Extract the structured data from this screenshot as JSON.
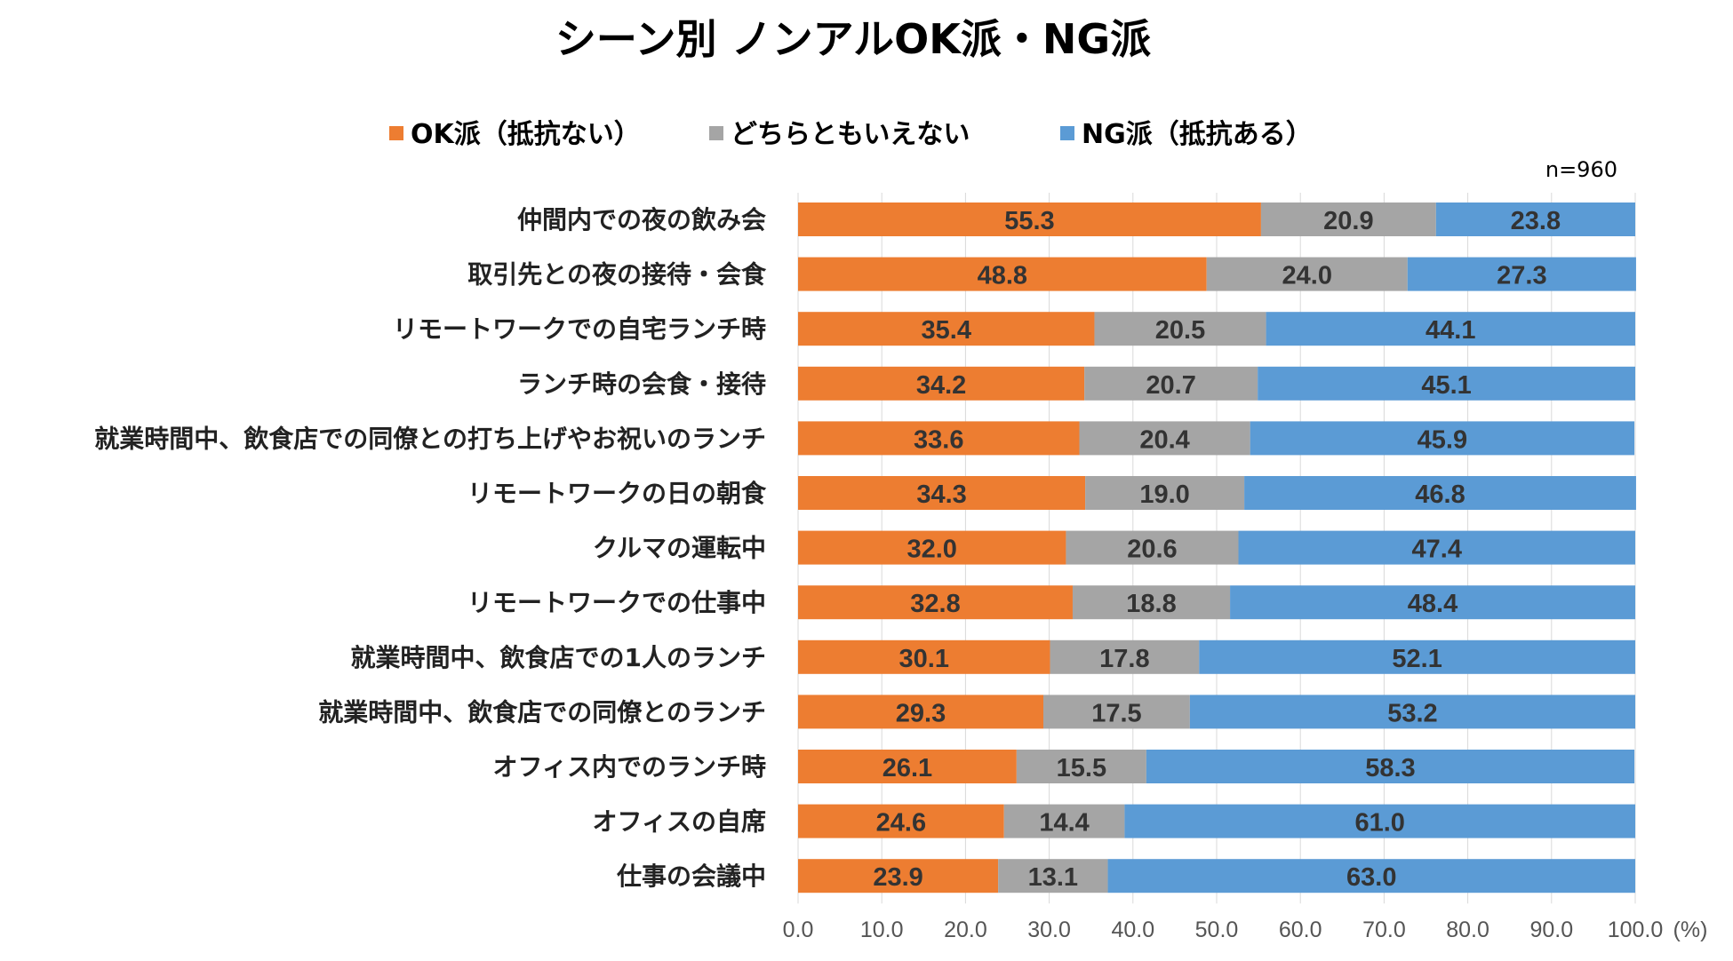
{
  "chart_data": {
    "type": "bar",
    "orientation": "horizontal",
    "stacked": true,
    "title": "シーン別 ノンアルOK派・NG派",
    "note": "n=960",
    "unit": "(%)",
    "xlim": [
      0,
      100
    ],
    "xticks": [
      "0.0",
      "10.0",
      "20.0",
      "30.0",
      "40.0",
      "50.0",
      "60.0",
      "70.0",
      "80.0",
      "90.0",
      "100.0"
    ],
    "legend_position": "top",
    "categories": [
      "仲間内での夜の飲み会",
      "取引先との夜の接待・会食",
      "リモートワークでの自宅ランチ時",
      "ランチ時の会食・接待",
      "就業時間中、飲食店での同僚との打ち上げやお祝いのランチ",
      "リモートワークの日の朝食",
      "クルマの運転中",
      "リモートワークでの仕事中",
      "就業時間中、飲食店での1人のランチ",
      "就業時間中、飲食店での同僚とのランチ",
      "オフィス内でのランチ時",
      "オフィスの自席",
      "仕事の会議中"
    ],
    "series": [
      {
        "name": "OK派（抵抗ない）",
        "color": "#ED7D31",
        "values": [
          55.3,
          48.8,
          35.4,
          34.2,
          33.6,
          34.3,
          32.0,
          32.8,
          30.1,
          29.3,
          26.1,
          24.6,
          23.9
        ],
        "labels": [
          "55.3",
          "48.8",
          "35.4",
          "34.2",
          "33.6",
          "34.3",
          "32.0",
          "32.8",
          "30.1",
          "29.3",
          "26.1",
          "24.6",
          "23.9"
        ]
      },
      {
        "name": "どちらともいえない",
        "color": "#A5A5A5",
        "values": [
          20.9,
          24.0,
          20.5,
          20.7,
          20.4,
          19.0,
          20.6,
          18.8,
          17.8,
          17.5,
          15.5,
          14.4,
          13.1
        ],
        "labels": [
          "20.9",
          "24.0",
          "20.5",
          "20.7",
          "20.4",
          "19.0",
          "20.6",
          "18.8",
          "17.8",
          "17.5",
          "15.5",
          "14.4",
          "13.1"
        ]
      },
      {
        "name": "NG派（抵抗ある）",
        "color": "#5B9BD5",
        "values": [
          23.8,
          27.3,
          44.1,
          45.1,
          45.9,
          46.8,
          47.4,
          48.4,
          52.1,
          53.2,
          58.3,
          61.0,
          63.0
        ],
        "labels": [
          "23.8",
          "27.3",
          "44.1",
          "45.1",
          "45.9",
          "46.8",
          "47.4",
          "48.4",
          "52.1",
          "53.2",
          "58.3",
          "61.0",
          "63.0"
        ]
      }
    ]
  }
}
